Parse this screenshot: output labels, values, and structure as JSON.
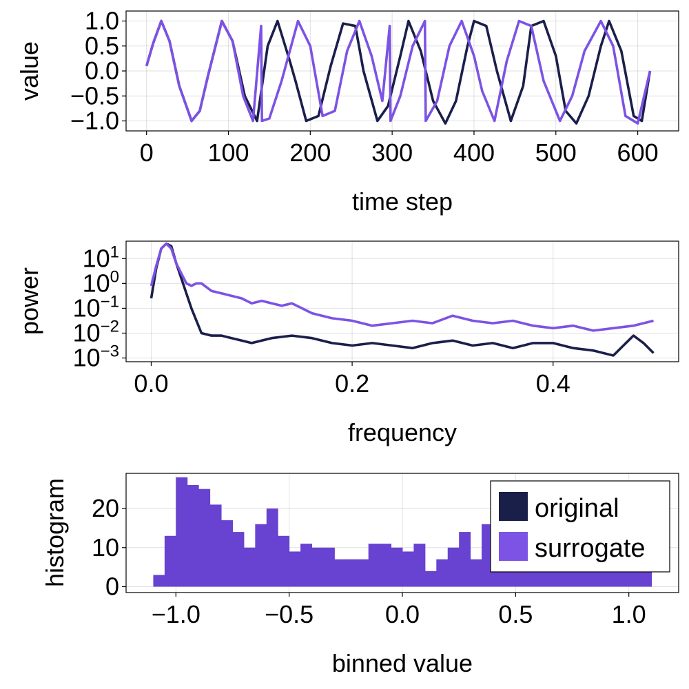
{
  "colors": {
    "original": "#1a1f4a",
    "surrogate": "#7c53e4",
    "histogram": "#6842d0"
  },
  "legend": [
    {
      "name": "original",
      "color": "#1a1f4a"
    },
    {
      "name": "surrogate",
      "color": "#7c53e4"
    }
  ],
  "chart_data": [
    {
      "type": "line",
      "xlabel": "time step",
      "ylabel": "value",
      "xlim": [
        -25,
        650
      ],
      "ylim": [
        -1.2,
        1.2
      ],
      "xticks": [
        0,
        100,
        200,
        300,
        400,
        500,
        600
      ],
      "xtick_labels": [
        "0",
        "100",
        "200",
        "300",
        "400",
        "500",
        "600"
      ],
      "yticks": [
        1.0,
        0.5,
        0.0,
        -0.5,
        -1.0
      ],
      "ytick_labels": [
        "1.0",
        "0.5",
        "0.0",
        "−0.5",
        "−1.0"
      ],
      "series": [
        {
          "name": "original",
          "x": [
            0,
            8,
            18,
            28,
            40,
            55,
            65,
            75,
            92,
            105,
            120,
            135,
            148,
            160,
            175,
            182,
            195,
            210,
            225,
            240,
            255,
            265,
            282,
            295,
            310,
            320,
            335,
            350,
            365,
            378,
            392,
            400,
            415,
            428,
            445,
            460,
            470,
            485,
            500,
            512,
            525,
            540,
            555,
            565,
            580,
            595,
            605,
            615
          ],
          "y": [
            0.1,
            0.55,
            1.0,
            0.6,
            -0.3,
            -1.0,
            -0.8,
            -0.1,
            1.0,
            0.6,
            -0.5,
            -1.0,
            0.5,
            1.0,
            0.2,
            -0.2,
            -1.0,
            -0.9,
            0.1,
            0.95,
            0.9,
            0.0,
            -1.0,
            -0.7,
            0.3,
            1.0,
            0.4,
            -0.6,
            -1.05,
            -0.6,
            0.5,
            1.0,
            0.9,
            0.0,
            -1.0,
            -0.3,
            0.9,
            1.0,
            0.3,
            -0.8,
            -1.05,
            -0.5,
            0.5,
            1.0,
            0.4,
            -0.9,
            -1.0,
            0.0
          ]
        },
        {
          "name": "surrogate",
          "x": [
            0,
            8,
            18,
            28,
            40,
            55,
            65,
            75,
            92,
            105,
            118,
            130,
            140,
            141,
            150,
            165,
            185,
            200,
            215,
            230,
            245,
            260,
            275,
            288,
            297,
            298,
            310,
            325,
            340,
            341,
            355,
            370,
            385,
            400,
            410,
            425,
            440,
            455,
            470,
            485,
            505,
            520,
            535,
            555,
            570,
            585,
            600,
            615
          ],
          "y": [
            0.1,
            0.55,
            1.0,
            0.6,
            -0.3,
            -1.0,
            -0.8,
            -0.1,
            1.0,
            0.6,
            -0.5,
            -1.0,
            0.9,
            -1.0,
            -0.95,
            -0.2,
            1.0,
            0.5,
            -0.9,
            -0.8,
            0.4,
            1.0,
            0.3,
            -0.6,
            0.9,
            -1.0,
            -0.5,
            0.5,
            1.0,
            -1.0,
            -0.6,
            0.5,
            1.0,
            0.3,
            -0.4,
            -1.0,
            0.2,
            1.0,
            0.9,
            -0.2,
            -1.0,
            -0.5,
            0.4,
            1.0,
            0.5,
            -0.9,
            -1.05,
            0.0
          ]
        }
      ]
    },
    {
      "type": "line",
      "xlabel": "frequency",
      "ylabel": "power",
      "yscale": "log10",
      "xlim": [
        -0.025,
        0.525
      ],
      "ylim": [
        -3.15,
        1.7
      ],
      "xticks": [
        0.0,
        0.2,
        0.4
      ],
      "xtick_labels": [
        "0.0",
        "0.2",
        "0.4"
      ],
      "yticks": [
        1,
        0,
        -1,
        -2,
        -3
      ],
      "ytick_labels": [
        {
          "base": "10",
          "exp": "1"
        },
        {
          "base": "10",
          "exp": "0"
        },
        {
          "base": "10",
          "exp": "−1"
        },
        {
          "base": "10",
          "exp": "−2"
        },
        {
          "base": "10",
          "exp": "−3"
        }
      ],
      "series": [
        {
          "name": "original",
          "x": [
            0.0,
            0.005,
            0.01,
            0.015,
            0.02,
            0.025,
            0.03,
            0.035,
            0.04,
            0.045,
            0.05,
            0.06,
            0.07,
            0.08,
            0.09,
            0.1,
            0.12,
            0.14,
            0.16,
            0.18,
            0.2,
            0.22,
            0.24,
            0.26,
            0.28,
            0.3,
            0.32,
            0.34,
            0.36,
            0.38,
            0.4,
            0.42,
            0.44,
            0.46,
            0.47,
            0.48,
            0.49,
            0.5
          ],
          "y": [
            -0.6,
            0.6,
            1.4,
            1.6,
            1.5,
            0.8,
            0.2,
            -0.4,
            -1.0,
            -1.5,
            -2.0,
            -2.1,
            -2.1,
            -2.2,
            -2.3,
            -2.4,
            -2.2,
            -2.1,
            -2.2,
            -2.4,
            -2.5,
            -2.4,
            -2.5,
            -2.6,
            -2.4,
            -2.3,
            -2.5,
            -2.4,
            -2.6,
            -2.4,
            -2.4,
            -2.6,
            -2.7,
            -2.9,
            -2.5,
            -2.1,
            -2.4,
            -2.8
          ]
        },
        {
          "name": "surrogate",
          "x": [
            0.0,
            0.005,
            0.01,
            0.015,
            0.02,
            0.025,
            0.03,
            0.035,
            0.04,
            0.045,
            0.05,
            0.06,
            0.07,
            0.08,
            0.09,
            0.1,
            0.11,
            0.12,
            0.13,
            0.14,
            0.15,
            0.16,
            0.17,
            0.18,
            0.2,
            0.22,
            0.24,
            0.26,
            0.28,
            0.3,
            0.32,
            0.34,
            0.36,
            0.38,
            0.4,
            0.42,
            0.44,
            0.46,
            0.48,
            0.5
          ],
          "y": [
            -0.1,
            0.7,
            1.4,
            1.6,
            1.4,
            0.8,
            0.4,
            0.0,
            -0.1,
            0.0,
            0.0,
            -0.3,
            -0.4,
            -0.5,
            -0.6,
            -0.8,
            -0.7,
            -0.8,
            -0.9,
            -0.8,
            -1.0,
            -1.2,
            -1.3,
            -1.4,
            -1.5,
            -1.7,
            -1.6,
            -1.5,
            -1.6,
            -1.3,
            -1.5,
            -1.6,
            -1.5,
            -1.7,
            -1.8,
            -1.7,
            -1.9,
            -1.8,
            -1.7,
            -1.5
          ]
        }
      ]
    },
    {
      "type": "bar",
      "xlabel": "binned value",
      "ylabel": "histogram",
      "xlim": [
        -1.22,
        1.22
      ],
      "ylim": [
        -1.5,
        29
      ],
      "xticks": [
        -1.0,
        -0.5,
        0.0,
        0.5,
        1.0
      ],
      "xtick_labels": [
        "−1.0",
        "−0.5",
        "0.0",
        "0.5",
        "1.0"
      ],
      "yticks": [
        0,
        10,
        20
      ],
      "ytick_labels": [
        "0",
        "10",
        "20"
      ],
      "bin_start": -1.1,
      "bin_width": 0.05,
      "counts": [
        3,
        13,
        28,
        26,
        25,
        21,
        17,
        14,
        10,
        16,
        20,
        13,
        9,
        11,
        10,
        10,
        7,
        7,
        7,
        11,
        11,
        10,
        9,
        11,
        4,
        7,
        10,
        14,
        7,
        16,
        8,
        7,
        6,
        10,
        9,
        9,
        9,
        9,
        9,
        9,
        9,
        9,
        9,
        9
      ]
    }
  ]
}
